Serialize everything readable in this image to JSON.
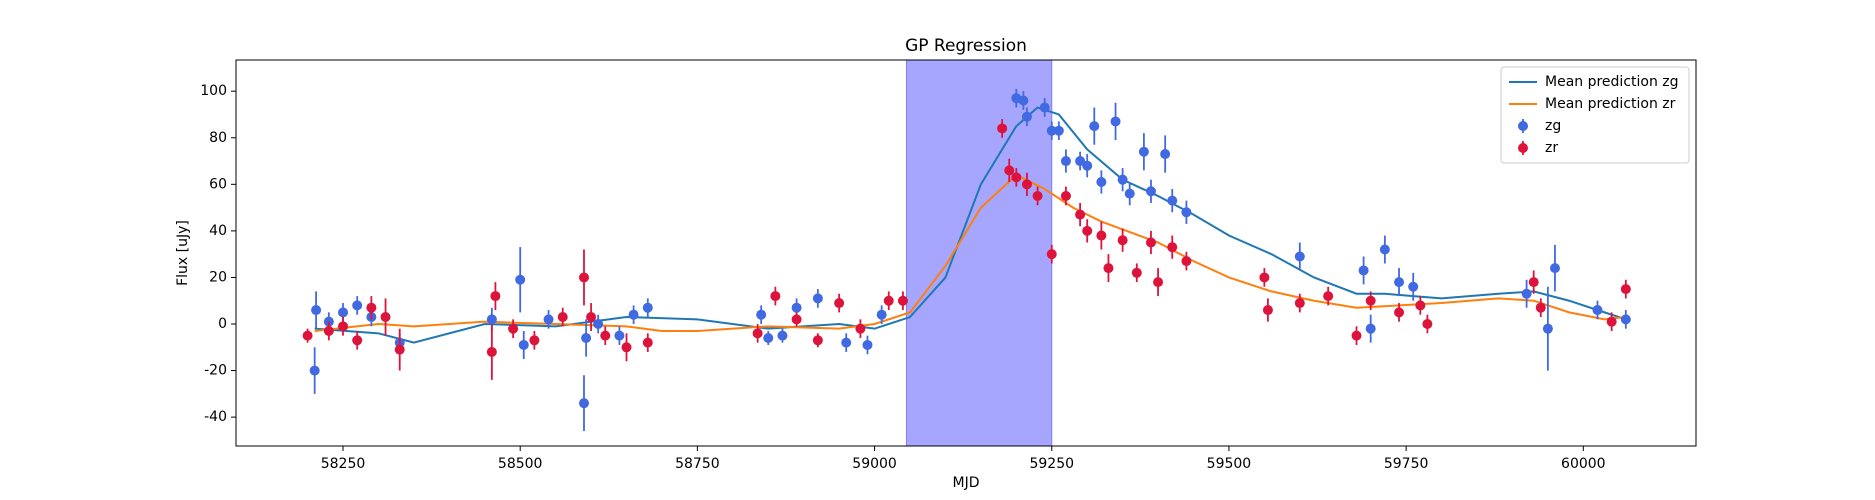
{
  "chart_data": {
    "type": "errorbar",
    "title": "GP Regression",
    "xlabel": "MJD",
    "ylabel": "Flux [uJy]",
    "xlim": [
      58099,
      60159
    ],
    "ylim": [
      -52.4,
      113.4
    ],
    "xticks": [
      58250,
      58500,
      58750,
      59000,
      59250,
      59500,
      59750,
      60000
    ],
    "yticks": [
      -40,
      -20,
      0,
      20,
      40,
      60,
      80,
      100
    ],
    "span": {
      "x": [
        59045,
        59250
      ],
      "color": "#a6a6ff"
    },
    "legend": "upper right",
    "series": [
      {
        "name": "Mean prediction zg",
        "type": "line",
        "color": "#1f77b4",
        "x": [
          58210,
          58300,
          58350,
          58450,
          58550,
          58650,
          58750,
          58850,
          58950,
          59000,
          59050,
          59100,
          59150,
          59200,
          59230,
          59260,
          59300,
          59350,
          59400,
          59450,
          59500,
          59560,
          59620,
          59680,
          59720,
          59760,
          59800,
          59880,
          59930,
          59980,
          60030,
          60060
        ],
        "values": [
          -2,
          -4,
          -8,
          0,
          -1,
          3,
          2,
          -2,
          0,
          -2,
          3,
          20,
          60,
          85,
          93,
          90,
          75,
          62,
          55,
          47,
          38,
          30,
          20,
          13,
          13,
          12,
          11,
          13,
          14,
          10,
          5,
          2
        ]
      },
      {
        "name": "Mean prediction zr",
        "type": "line",
        "color": "#ff7f0e",
        "x": [
          58210,
          58300,
          58350,
          58450,
          58550,
          58650,
          58700,
          58750,
          58850,
          58950,
          59000,
          59050,
          59100,
          59150,
          59200,
          59240,
          59280,
          59320,
          59400,
          59450,
          59500,
          59560,
          59620,
          59680,
          59740,
          59800,
          59880,
          59930,
          59980,
          60030,
          60060
        ],
        "values": [
          -3,
          0,
          -1,
          1,
          0,
          -1,
          -3,
          -3,
          -1,
          -2,
          0,
          5,
          25,
          50,
          64,
          58,
          50,
          44,
          35,
          27,
          20,
          14,
          10,
          7,
          8,
          9,
          11,
          10,
          5,
          2,
          3
        ]
      },
      {
        "name": "zg",
        "type": "errorbar",
        "color": "#4169e1",
        "x": [
          58210,
          58212,
          58230,
          58250,
          58270,
          58290,
          58330,
          58460,
          58500,
          58505,
          58540,
          58590,
          58593,
          58610,
          58640,
          58660,
          58680,
          58840,
          58850,
          58870,
          58890,
          58920,
          58960,
          58990,
          59010,
          59200,
          59210,
          59215,
          59240,
          59250,
          59260,
          59270,
          59290,
          59300,
          59310,
          59320,
          59340,
          59350,
          59360,
          59380,
          59390,
          59410,
          59420,
          59440,
          59600,
          59690,
          59700,
          59720,
          59740,
          59760,
          59920,
          59950,
          59960,
          60020,
          60060
        ],
        "values": [
          -20,
          6,
          1,
          5,
          8,
          3,
          -8,
          2,
          19,
          -9,
          2,
          -34,
          -6,
          0,
          -5,
          4,
          7,
          4,
          -6,
          -5,
          7,
          11,
          -8,
          -9,
          4,
          97,
          96,
          89,
          93,
          83,
          83,
          70,
          70,
          68,
          85,
          61,
          87,
          62,
          56,
          74,
          57,
          73,
          53,
          48,
          29,
          23,
          -2,
          32,
          18,
          16,
          13,
          -2,
          24,
          6,
          2
        ],
        "errors": [
          10,
          8,
          4,
          4,
          4,
          4,
          4,
          5,
          14,
          6,
          4,
          12,
          8,
          4,
          4,
          4,
          4,
          4,
          3,
          3,
          4,
          4,
          4,
          4,
          4,
          4,
          4,
          4,
          4,
          4,
          4,
          5,
          4,
          5,
          8,
          5,
          8,
          5,
          5,
          8,
          5,
          8,
          5,
          5,
          6,
          6,
          6,
          6,
          6,
          6,
          6,
          18,
          10,
          4,
          4
        ]
      },
      {
        "name": "zr",
        "type": "errorbar",
        "color": "#dc143c",
        "x": [
          58200,
          58230,
          58250,
          58270,
          58290,
          58310,
          58330,
          58460,
          58465,
          58490,
          58520,
          58560,
          58590,
          58600,
          58620,
          58650,
          58680,
          58835,
          58860,
          58890,
          58920,
          58950,
          58980,
          59020,
          59040,
          59180,
          59190,
          59200,
          59215,
          59230,
          59250,
          59270,
          59290,
          59300,
          59320,
          59330,
          59350,
          59370,
          59390,
          59400,
          59420,
          59440,
          59550,
          59555,
          59600,
          59640,
          59680,
          59700,
          59740,
          59770,
          59780,
          59930,
          59940,
          60040,
          60060
        ],
        "values": [
          -5,
          -3,
          -1,
          -7,
          7,
          3,
          -11,
          -12,
          12,
          -2,
          -7,
          3,
          20,
          3,
          -5,
          -10,
          -8,
          -4,
          12,
          2,
          -7,
          9,
          -2,
          10,
          10,
          84,
          66,
          63,
          60,
          55,
          30,
          55,
          47,
          40,
          38,
          24,
          36,
          22,
          35,
          18,
          33,
          27,
          20,
          6,
          9,
          12,
          -5,
          10,
          5,
          8,
          0,
          18,
          7,
          1,
          15
        ],
        "errors": [
          3,
          4,
          4,
          4,
          5,
          8,
          9,
          12,
          6,
          4,
          4,
          4,
          12,
          6,
          4,
          6,
          4,
          4,
          4,
          3,
          3,
          4,
          4,
          4,
          4,
          4,
          5,
          4,
          5,
          4,
          4,
          4,
          5,
          5,
          6,
          6,
          5,
          4,
          5,
          6,
          5,
          4,
          4,
          5,
          4,
          4,
          4,
          4,
          4,
          4,
          4,
          5,
          4,
          4,
          4
        ]
      }
    ]
  }
}
